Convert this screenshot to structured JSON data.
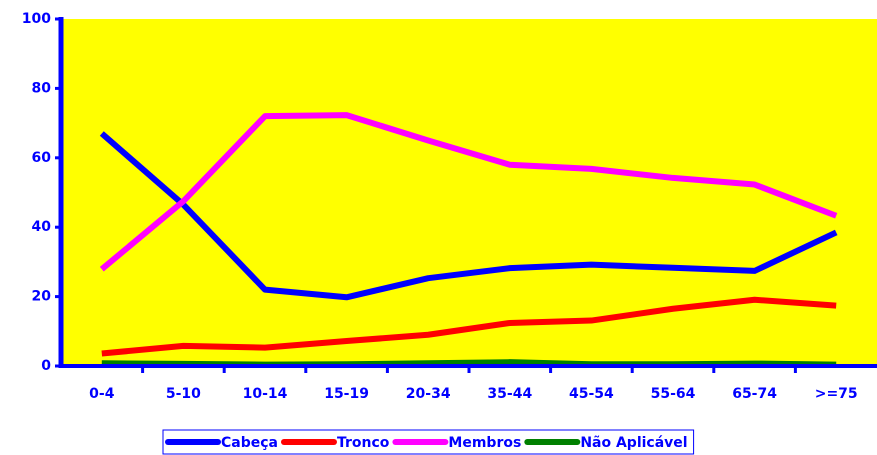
{
  "chart_data": {
    "type": "line",
    "categories": [
      "0-4",
      "5-10",
      "10-14",
      "15-19",
      "20-34",
      "35-44",
      "45-54",
      "55-64",
      "65-74",
      ">=75"
    ],
    "series": [
      {
        "name": "Cabeça",
        "color": "#0000ff",
        "values": [
          67,
          46.5,
          22,
          19.8,
          25.3,
          28.2,
          29.2,
          28.3,
          27.4,
          38.5
        ]
      },
      {
        "name": "Tronco",
        "color": "#ff0000",
        "values": [
          3.6,
          5.8,
          5.3,
          7.2,
          9,
          12.4,
          13.1,
          16.5,
          19.1,
          17.4
        ]
      },
      {
        "name": "Membros",
        "color": "#ff00ff",
        "values": [
          27.9,
          47.5,
          72,
          72.3,
          65,
          58,
          56.8,
          54.2,
          52.3,
          43.3
        ]
      },
      {
        "name": "Não Aplicável",
        "color": "#008000",
        "values": [
          0.8,
          0.6,
          0.4,
          0.5,
          0.8,
          1.1,
          0.5,
          0.5,
          0.7,
          0.4
        ]
      }
    ],
    "ylim": [
      0,
      100
    ],
    "yticks": [
      0,
      20,
      40,
      60,
      80,
      100
    ],
    "plot_background": "#ffff00",
    "axis_color": "#0000ff",
    "legend": "bottom"
  }
}
